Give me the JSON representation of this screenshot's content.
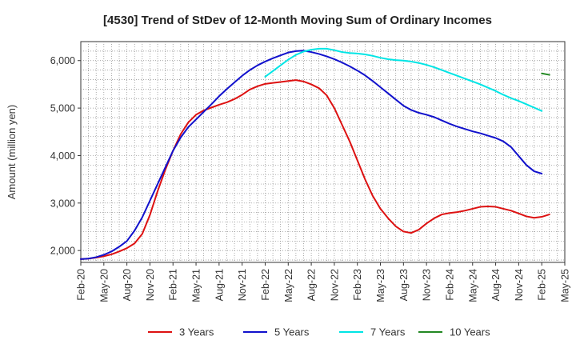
{
  "chart_data": {
    "type": "line",
    "title": "[4530]  Trend of StDev of 12-Month Moving Sum of Ordinary Incomes",
    "xlabel": "",
    "ylabel": "Amount (million yen)",
    "ylim": [
      1750,
      6400
    ],
    "yticks": [
      2000,
      3000,
      4000,
      5000,
      6000
    ],
    "ytick_labels": [
      "2,000",
      "3,000",
      "4,000",
      "5,000",
      "6,000"
    ],
    "xtick_labels": [
      "Feb-20",
      "May-20",
      "Aug-20",
      "Nov-20",
      "Feb-21",
      "May-21",
      "Aug-21",
      "Nov-21",
      "Feb-22",
      "May-22",
      "Aug-22",
      "Nov-22",
      "Feb-23",
      "May-23",
      "Aug-23",
      "Nov-23",
      "Feb-24",
      "May-24",
      "Aug-24",
      "Nov-24",
      "Feb-25",
      "May-25"
    ],
    "x_range_months": [
      0,
      63
    ],
    "grid": true,
    "legend_position": "bottom",
    "series": [
      {
        "name": "3 Years",
        "color": "#dd1111",
        "points": [
          [
            0,
            1820
          ],
          [
            1,
            1830
          ],
          [
            2,
            1850
          ],
          [
            3,
            1880
          ],
          [
            4,
            1920
          ],
          [
            5,
            1980
          ],
          [
            6,
            2050
          ],
          [
            7,
            2150
          ],
          [
            8,
            2350
          ],
          [
            9,
            2750
          ],
          [
            10,
            3250
          ],
          [
            11,
            3700
          ],
          [
            12,
            4100
          ],
          [
            13,
            4450
          ],
          [
            14,
            4700
          ],
          [
            15,
            4860
          ],
          [
            16,
            4950
          ],
          [
            17,
            5010
          ],
          [
            18,
            5070
          ],
          [
            19,
            5120
          ],
          [
            20,
            5190
          ],
          [
            21,
            5280
          ],
          [
            22,
            5390
          ],
          [
            23,
            5460
          ],
          [
            24,
            5510
          ],
          [
            25,
            5530
          ],
          [
            26,
            5550
          ],
          [
            27,
            5570
          ],
          [
            28,
            5590
          ],
          [
            29,
            5560
          ],
          [
            30,
            5500
          ],
          [
            31,
            5420
          ],
          [
            32,
            5270
          ],
          [
            33,
            5000
          ],
          [
            34,
            4650
          ],
          [
            35,
            4300
          ],
          [
            36,
            3900
          ],
          [
            37,
            3500
          ],
          [
            38,
            3150
          ],
          [
            39,
            2880
          ],
          [
            40,
            2680
          ],
          [
            41,
            2510
          ],
          [
            42,
            2400
          ],
          [
            43,
            2370
          ],
          [
            44,
            2440
          ],
          [
            45,
            2570
          ],
          [
            46,
            2680
          ],
          [
            47,
            2760
          ],
          [
            48,
            2790
          ],
          [
            49,
            2810
          ],
          [
            50,
            2840
          ],
          [
            51,
            2880
          ],
          [
            52,
            2920
          ],
          [
            53,
            2930
          ],
          [
            54,
            2920
          ],
          [
            55,
            2880
          ],
          [
            56,
            2840
          ],
          [
            57,
            2780
          ],
          [
            58,
            2720
          ],
          [
            59,
            2690
          ],
          [
            60,
            2710
          ],
          [
            61,
            2760
          ]
        ]
      },
      {
        "name": "5 Years",
        "color": "#1111cc",
        "points": [
          [
            0,
            1820
          ],
          [
            1,
            1830
          ],
          [
            2,
            1860
          ],
          [
            3,
            1910
          ],
          [
            4,
            1980
          ],
          [
            5,
            2080
          ],
          [
            6,
            2200
          ],
          [
            7,
            2420
          ],
          [
            8,
            2700
          ],
          [
            9,
            3050
          ],
          [
            10,
            3400
          ],
          [
            11,
            3750
          ],
          [
            12,
            4100
          ],
          [
            13,
            4380
          ],
          [
            14,
            4600
          ],
          [
            15,
            4760
          ],
          [
            16,
            4920
          ],
          [
            17,
            5080
          ],
          [
            18,
            5250
          ],
          [
            19,
            5400
          ],
          [
            20,
            5540
          ],
          [
            21,
            5680
          ],
          [
            22,
            5800
          ],
          [
            23,
            5900
          ],
          [
            24,
            5980
          ],
          [
            25,
            6050
          ],
          [
            26,
            6110
          ],
          [
            27,
            6170
          ],
          [
            28,
            6200
          ],
          [
            29,
            6210
          ],
          [
            30,
            6180
          ],
          [
            31,
            6140
          ],
          [
            32,
            6090
          ],
          [
            33,
            6030
          ],
          [
            34,
            5960
          ],
          [
            35,
            5880
          ],
          [
            36,
            5790
          ],
          [
            37,
            5690
          ],
          [
            38,
            5570
          ],
          [
            39,
            5440
          ],
          [
            40,
            5310
          ],
          [
            41,
            5180
          ],
          [
            42,
            5050
          ],
          [
            43,
            4960
          ],
          [
            44,
            4900
          ],
          [
            45,
            4860
          ],
          [
            46,
            4810
          ],
          [
            47,
            4740
          ],
          [
            48,
            4670
          ],
          [
            49,
            4610
          ],
          [
            50,
            4560
          ],
          [
            51,
            4510
          ],
          [
            52,
            4470
          ],
          [
            53,
            4420
          ],
          [
            54,
            4370
          ],
          [
            55,
            4300
          ],
          [
            56,
            4180
          ],
          [
            57,
            3990
          ],
          [
            58,
            3800
          ],
          [
            59,
            3670
          ],
          [
            60,
            3620
          ]
        ]
      },
      {
        "name": "7 Years",
        "color": "#00e5e5",
        "points": [
          [
            24,
            5660
          ],
          [
            25,
            5780
          ],
          [
            26,
            5900
          ],
          [
            27,
            6020
          ],
          [
            28,
            6120
          ],
          [
            29,
            6190
          ],
          [
            30,
            6230
          ],
          [
            31,
            6250
          ],
          [
            32,
            6250
          ],
          [
            33,
            6220
          ],
          [
            34,
            6180
          ],
          [
            35,
            6160
          ],
          [
            36,
            6150
          ],
          [
            37,
            6130
          ],
          [
            38,
            6100
          ],
          [
            39,
            6060
          ],
          [
            40,
            6030
          ],
          [
            41,
            6010
          ],
          [
            42,
            6000
          ],
          [
            43,
            5980
          ],
          [
            44,
            5950
          ],
          [
            45,
            5910
          ],
          [
            46,
            5860
          ],
          [
            47,
            5800
          ],
          [
            48,
            5740
          ],
          [
            49,
            5680
          ],
          [
            50,
            5620
          ],
          [
            51,
            5560
          ],
          [
            52,
            5500
          ],
          [
            53,
            5430
          ],
          [
            54,
            5360
          ],
          [
            55,
            5280
          ],
          [
            56,
            5210
          ],
          [
            57,
            5150
          ],
          [
            58,
            5080
          ],
          [
            59,
            5010
          ],
          [
            60,
            4940
          ]
        ]
      },
      {
        "name": "10 Years",
        "color": "#228822",
        "points": [
          [
            60,
            5730
          ],
          [
            61,
            5700
          ]
        ]
      }
    ]
  }
}
